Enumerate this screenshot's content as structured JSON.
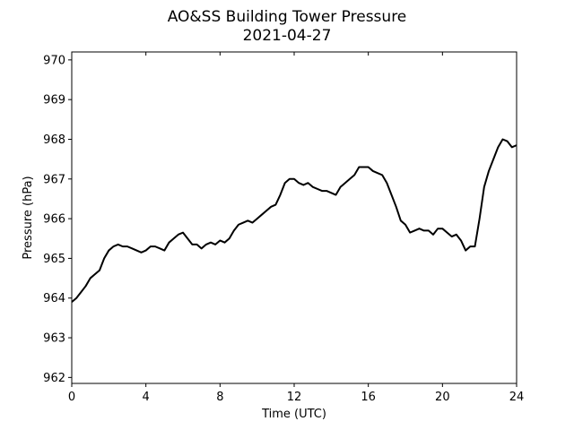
{
  "chart_data": {
    "type": "line",
    "title": "AO&SS Building Tower Pressure",
    "subtitle": "2021-04-27",
    "xlabel": "Time (UTC)",
    "ylabel": "Pressure (hPa)",
    "xlim": [
      0,
      24
    ],
    "ylim": [
      961.85,
      970.2
    ],
    "xticks": [
      0,
      4,
      8,
      12,
      16,
      20,
      24
    ],
    "yticks": [
      962,
      963,
      964,
      965,
      966,
      967,
      968,
      969,
      970
    ],
    "grid": false,
    "line_color": "#000000",
    "series": [
      {
        "x": [
          0,
          0.25,
          0.5,
          0.75,
          1.0,
          1.25,
          1.5,
          1.75,
          2.0,
          2.25,
          2.5,
          2.75,
          3.0,
          3.25,
          3.5,
          3.75,
          4.0,
          4.25,
          4.5,
          4.75,
          5.0,
          5.25,
          5.5,
          5.75,
          6.0,
          6.25,
          6.5,
          6.75,
          7.0,
          7.25,
          7.5,
          7.75,
          8.0,
          8.25,
          8.5,
          8.75,
          9.0,
          9.25,
          9.5,
          9.75,
          10.0,
          10.25,
          10.5,
          10.75,
          11.0,
          11.25,
          11.5,
          11.75,
          12.0,
          12.25,
          12.5,
          12.75,
          13.0,
          13.25,
          13.5,
          13.75,
          14.0,
          14.25,
          14.5,
          14.75,
          15.0,
          15.25,
          15.5,
          15.75,
          16.0,
          16.25,
          16.5,
          16.75,
          17.0,
          17.25,
          17.5,
          17.75,
          18.0,
          18.25,
          18.5,
          18.75,
          19.0,
          19.25,
          19.5,
          19.75,
          20.0,
          20.25,
          20.5,
          20.75,
          21.0,
          21.25,
          21.5,
          21.75,
          22.0,
          22.25,
          22.5,
          22.75,
          23.0,
          23.25,
          23.5,
          23.75,
          24.0
        ],
        "values": [
          963.9,
          964.0,
          964.15,
          964.3,
          964.5,
          964.6,
          964.7,
          965.0,
          965.2,
          965.3,
          965.35,
          965.3,
          965.3,
          965.25,
          965.2,
          965.15,
          965.2,
          965.3,
          965.3,
          965.25,
          965.2,
          965.4,
          965.5,
          965.6,
          965.65,
          965.5,
          965.35,
          965.35,
          965.25,
          965.35,
          965.4,
          965.35,
          965.45,
          965.4,
          965.5,
          965.7,
          965.85,
          965.9,
          965.95,
          965.9,
          966.0,
          966.1,
          966.2,
          966.3,
          966.35,
          966.6,
          966.9,
          967.0,
          967.0,
          966.9,
          966.85,
          966.9,
          966.8,
          966.75,
          966.7,
          966.7,
          966.65,
          966.6,
          966.8,
          966.9,
          967.0,
          967.1,
          967.3,
          967.3,
          967.3,
          967.2,
          967.15,
          967.1,
          966.9,
          966.6,
          966.3,
          965.95,
          965.85,
          965.65,
          965.7,
          965.75,
          965.7,
          965.7,
          965.6,
          965.75,
          965.75,
          965.65,
          965.55,
          965.6,
          965.45,
          965.2,
          965.3,
          965.3,
          966.0,
          966.8,
          967.2,
          967.5,
          967.8,
          968.0,
          967.95,
          967.8,
          967.85
        ]
      }
    ]
  }
}
